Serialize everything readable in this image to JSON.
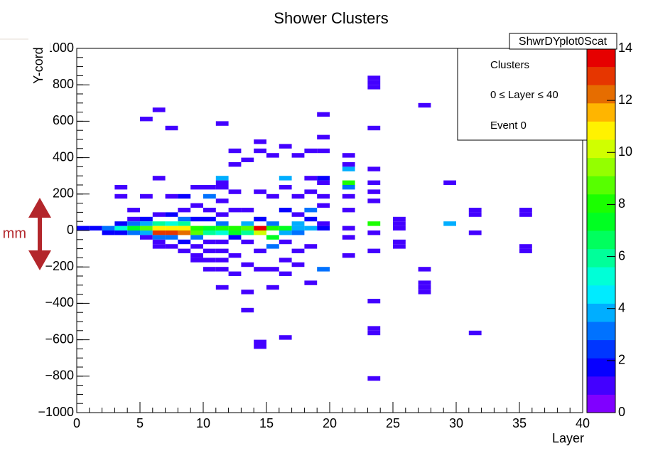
{
  "chart_data": {
    "type": "heatmap",
    "title": "Shower Clusters",
    "stats_title": "ShwrDYplot0Scat",
    "legend_lines": [
      "Clusters",
      "0 ≤ Layer ≤ 40",
      "Event 0"
    ],
    "x_label": "Layer",
    "y_label": "Y-cord",
    "annotation": "mm",
    "xlim": [
      0,
      40
    ],
    "xticks": [
      0,
      5,
      10,
      15,
      20,
      25,
      30,
      35,
      40
    ],
    "ylim": [
      -1000,
      1000
    ],
    "yticks": [
      {
        "value": -1000,
        "label": "−1000"
      },
      {
        "value": -800,
        "label": "−800"
      },
      {
        "value": -600,
        "label": "−600"
      },
      {
        "value": -400,
        "label": "−400"
      },
      {
        "value": -200,
        "label": "−200"
      },
      0,
      200,
      400,
      600,
      800,
      1000
    ],
    "zlim": [
      0,
      14
    ],
    "zticks": [
      0,
      2,
      4,
      6,
      8,
      10,
      12,
      14
    ],
    "bin_width": 1,
    "bin_height": 25,
    "cells": [
      [
        0,
        0,
        2
      ],
      [
        1,
        0,
        2
      ],
      [
        2,
        0,
        3
      ],
      [
        2,
        -25,
        2
      ],
      [
        3,
        0,
        5
      ],
      [
        3,
        25,
        2
      ],
      [
        3,
        225,
        1
      ],
      [
        3,
        175,
        1
      ],
      [
        3,
        -25,
        2
      ],
      [
        4,
        100,
        1
      ],
      [
        4,
        50,
        1
      ],
      [
        4,
        25,
        3
      ],
      [
        4,
        0,
        7
      ],
      [
        4,
        -25,
        3
      ],
      [
        5,
        600,
        1
      ],
      [
        5,
        175,
        1
      ],
      [
        5,
        50,
        2
      ],
      [
        5,
        25,
        4
      ],
      [
        5,
        0,
        9
      ],
      [
        5,
        -25,
        4
      ],
      [
        5,
        -50,
        1
      ],
      [
        6,
        650,
        1
      ],
      [
        6,
        275,
        1
      ],
      [
        6,
        75,
        1
      ],
      [
        6,
        25,
        6
      ],
      [
        6,
        0,
        11
      ],
      [
        6,
        -25,
        13
      ],
      [
        6,
        -50,
        3
      ],
      [
        6,
        -75,
        1
      ],
      [
        6,
        -100,
        1
      ],
      [
        7,
        550,
        1
      ],
      [
        7,
        175,
        1
      ],
      [
        7,
        75,
        2
      ],
      [
        7,
        25,
        5
      ],
      [
        7,
        0,
        11
      ],
      [
        7,
        -25,
        13
      ],
      [
        7,
        -50,
        3
      ],
      [
        7,
        -100,
        1
      ],
      [
        8,
        175,
        2
      ],
      [
        8,
        100,
        1
      ],
      [
        8,
        50,
        3
      ],
      [
        8,
        25,
        6
      ],
      [
        8,
        0,
        11
      ],
      [
        8,
        -25,
        12
      ],
      [
        8,
        -75,
        2
      ],
      [
        8,
        -125,
        1
      ],
      [
        9,
        225,
        1
      ],
      [
        9,
        125,
        1
      ],
      [
        9,
        50,
        2
      ],
      [
        9,
        0,
        8
      ],
      [
        9,
        -25,
        9
      ],
      [
        9,
        -50,
        3
      ],
      [
        9,
        -100,
        1
      ],
      [
        9,
        -150,
        1
      ],
      [
        9,
        -175,
        1
      ],
      [
        10,
        225,
        1
      ],
      [
        10,
        175,
        3
      ],
      [
        10,
        100,
        1
      ],
      [
        10,
        50,
        2
      ],
      [
        10,
        0,
        7
      ],
      [
        10,
        -25,
        6
      ],
      [
        10,
        -75,
        1
      ],
      [
        10,
        -125,
        1
      ],
      [
        10,
        -175,
        1
      ],
      [
        10,
        -225,
        1
      ],
      [
        11,
        575,
        1
      ],
      [
        11,
        275,
        4
      ],
      [
        11,
        250,
        1
      ],
      [
        11,
        225,
        1
      ],
      [
        11,
        150,
        1
      ],
      [
        11,
        75,
        1
      ],
      [
        11,
        25,
        3
      ],
      [
        11,
        0,
        8
      ],
      [
        11,
        -25,
        5
      ],
      [
        11,
        -75,
        1
      ],
      [
        11,
        -125,
        1
      ],
      [
        11,
        -175,
        1
      ],
      [
        11,
        -225,
        1
      ],
      [
        11,
        -325,
        1
      ],
      [
        12,
        425,
        1
      ],
      [
        12,
        350,
        1
      ],
      [
        12,
        200,
        1
      ],
      [
        12,
        100,
        1
      ],
      [
        12,
        0,
        8
      ],
      [
        12,
        -25,
        7
      ],
      [
        12,
        -50,
        2
      ],
      [
        12,
        -150,
        1
      ],
      [
        12,
        -250,
        1
      ],
      [
        13,
        375,
        1
      ],
      [
        13,
        100,
        1
      ],
      [
        13,
        25,
        4
      ],
      [
        13,
        0,
        9
      ],
      [
        13,
        -25,
        6
      ],
      [
        13,
        -75,
        1
      ],
      [
        13,
        -200,
        1
      ],
      [
        13,
        -350,
        1
      ],
      [
        13,
        -450,
        1
      ],
      [
        14,
        475,
        1
      ],
      [
        14,
        425,
        1
      ],
      [
        14,
        200,
        1
      ],
      [
        14,
        50,
        2
      ],
      [
        14,
        0,
        14
      ],
      [
        14,
        -25,
        10
      ],
      [
        14,
        -125,
        1
      ],
      [
        14,
        -225,
        1
      ],
      [
        14,
        -625,
        1
      ],
      [
        14,
        -650,
        1
      ],
      [
        15,
        400,
        1
      ],
      [
        15,
        175,
        1
      ],
      [
        15,
        25,
        3
      ],
      [
        15,
        0,
        8
      ],
      [
        15,
        -50,
        7
      ],
      [
        15,
        -100,
        3
      ],
      [
        15,
        -225,
        1
      ],
      [
        15,
        -325,
        1
      ],
      [
        16,
        450,
        1
      ],
      [
        16,
        275,
        4
      ],
      [
        16,
        225,
        1
      ],
      [
        16,
        100,
        2
      ],
      [
        16,
        0,
        7
      ],
      [
        16,
        -25,
        4
      ],
      [
        16,
        -75,
        1
      ],
      [
        16,
        -175,
        1
      ],
      [
        16,
        -250,
        1
      ],
      [
        16,
        -600,
        1
      ],
      [
        17,
        400,
        1
      ],
      [
        17,
        175,
        1
      ],
      [
        17,
        75,
        1
      ],
      [
        17,
        25,
        4
      ],
      [
        17,
        0,
        4
      ],
      [
        17,
        -25,
        3
      ],
      [
        17,
        -125,
        1
      ],
      [
        17,
        -200,
        1
      ],
      [
        18,
        425,
        1
      ],
      [
        18,
        275,
        1
      ],
      [
        18,
        200,
        1
      ],
      [
        18,
        100,
        3
      ],
      [
        18,
        50,
        2
      ],
      [
        18,
        0,
        4
      ],
      [
        18,
        -100,
        1
      ],
      [
        18,
        -300,
        1
      ],
      [
        19,
        625,
        1
      ],
      [
        19,
        500,
        1
      ],
      [
        19,
        425,
        1
      ],
      [
        19,
        275,
        2
      ],
      [
        19,
        250,
        1
      ],
      [
        19,
        175,
        1
      ],
      [
        19,
        125,
        1
      ],
      [
        19,
        25,
        1
      ],
      [
        19,
        0,
        2
      ],
      [
        19,
        -225,
        3
      ],
      [
        21,
        400,
        1
      ],
      [
        21,
        350,
        1
      ],
      [
        21,
        325,
        4
      ],
      [
        21,
        250,
        8
      ],
      [
        21,
        225,
        3
      ],
      [
        21,
        175,
        1
      ],
      [
        21,
        100,
        1
      ],
      [
        21,
        0,
        1
      ],
      [
        21,
        -50,
        1
      ],
      [
        21,
        -150,
        1
      ],
      [
        23,
        825,
        1
      ],
      [
        23,
        800,
        1
      ],
      [
        23,
        775,
        1
      ],
      [
        23,
        550,
        1
      ],
      [
        23,
        325,
        1
      ],
      [
        23,
        250,
        1
      ],
      [
        23,
        200,
        1
      ],
      [
        23,
        150,
        1
      ],
      [
        23,
        25,
        8
      ],
      [
        23,
        -25,
        1
      ],
      [
        23,
        -125,
        1
      ],
      [
        23,
        -400,
        1
      ],
      [
        23,
        -575,
        1
      ],
      [
        23,
        -550,
        1
      ],
      [
        23,
        -825,
        1
      ],
      [
        25,
        50,
        1
      ],
      [
        25,
        25,
        1
      ],
      [
        25,
        0,
        1
      ],
      [
        25,
        -75,
        1
      ],
      [
        25,
        -100,
        1
      ],
      [
        27,
        675,
        1
      ],
      [
        27,
        -225,
        1
      ],
      [
        27,
        -300,
        1
      ],
      [
        27,
        -325,
        1
      ],
      [
        27,
        -350,
        1
      ],
      [
        29,
        250,
        1
      ],
      [
        29,
        25,
        4
      ],
      [
        31,
        100,
        1
      ],
      [
        31,
        75,
        1
      ],
      [
        31,
        -25,
        1
      ],
      [
        31,
        -575,
        1
      ],
      [
        35,
        100,
        1
      ],
      [
        35,
        75,
        1
      ],
      [
        35,
        -125,
        1
      ],
      [
        35,
        -100,
        1
      ]
    ]
  }
}
